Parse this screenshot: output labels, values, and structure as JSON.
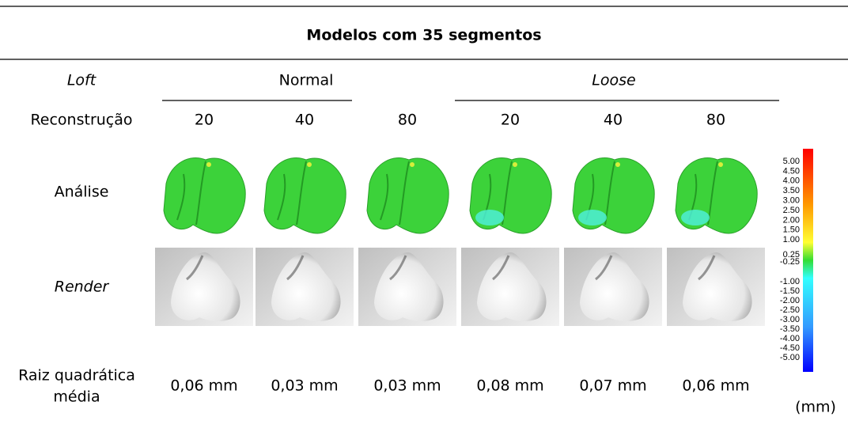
{
  "title": "Modelos com 35 segmentos",
  "row_labels": {
    "loft": "Loft",
    "reconstruction": "Reconstrução",
    "analysis": "Análise",
    "render": "Render",
    "rms": [
      "Raiz quadrática",
      "média"
    ]
  },
  "groups": [
    "Normal",
    "Loose"
  ],
  "columns": [
    "20",
    "40",
    "80",
    "20",
    "40",
    "80"
  ],
  "rms": [
    "0,06 mm",
    "0,03 mm",
    "0,03 mm",
    "0,08 mm",
    "0,07 mm",
    "0,06 mm"
  ],
  "scale": {
    "labels": [
      "5.00",
      "4.50",
      "4.00",
      "3.50",
      "3.00",
      "2.50",
      "2.00",
      "1.50",
      "1.00",
      "0.25",
      "-0.25",
      "-1.00",
      "-1.50",
      "-2.00",
      "-2.50",
      "-3.00",
      "-3.50",
      "-4.00",
      "-4.50",
      "-5.00"
    ],
    "unit": "(mm)"
  }
}
